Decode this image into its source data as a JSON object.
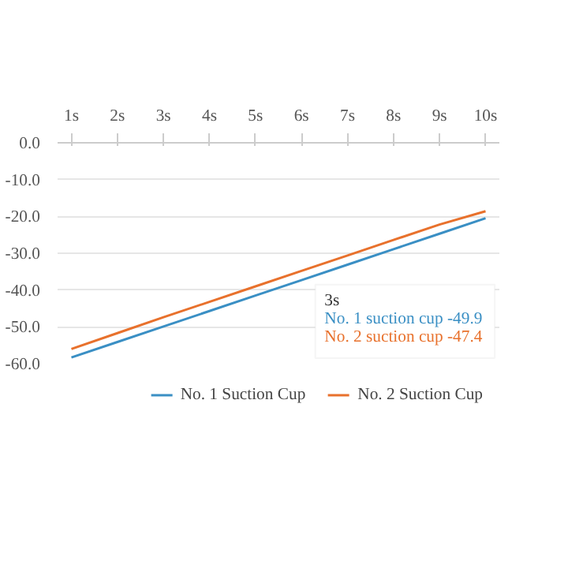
{
  "chart_data": {
    "type": "line",
    "categories": [
      "1s",
      "2s",
      "3s",
      "4s",
      "5s",
      "6s",
      "7s",
      "8s",
      "9s",
      "10s"
    ],
    "series": [
      {
        "name": "No. 1 Suction Cup",
        "color": "#3a8fc4",
        "values": [
          -58.3,
          -54.1,
          -49.9,
          -45.7,
          -41.5,
          -37.3,
          -33.1,
          -28.9,
          -24.7,
          -20.5
        ]
      },
      {
        "name": "No. 2 Suction Cup",
        "color": "#e8712c",
        "values": [
          -56.0,
          -51.7,
          -47.4,
          -43.2,
          -39.0,
          -34.8,
          -30.6,
          -26.4,
          -22.2,
          -18.6
        ]
      }
    ],
    "ylim": [
      -60,
      0
    ],
    "yticks": [
      {
        "value": 0,
        "label": "0.0"
      },
      {
        "value": -10,
        "label": "-10.0"
      },
      {
        "value": -20,
        "label": "-20.0"
      },
      {
        "value": -30,
        "label": "-30.0"
      },
      {
        "value": -40,
        "label": "-40.0"
      },
      {
        "value": -50,
        "label": "-50.0"
      },
      {
        "value": -60,
        "label": "-60.0"
      }
    ],
    "annotations": [
      "3s",
      "No. 1 suction cup -49.9",
      "No. 2 suction cup -47.4"
    ],
    "grid": "y",
    "legend": "bottom",
    "marker": "none",
    "line_style": "solid"
  }
}
